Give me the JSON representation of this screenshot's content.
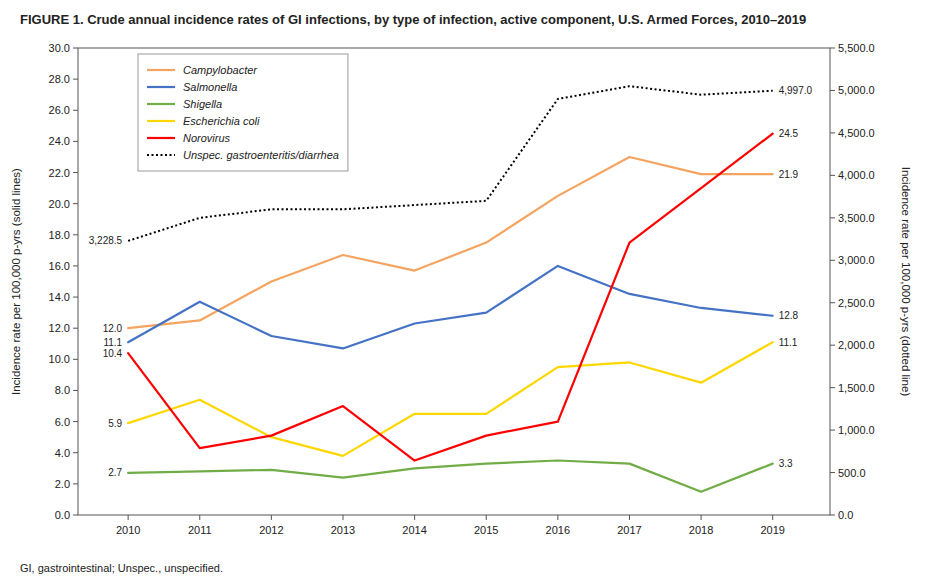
{
  "chart_data": {
    "type": "line",
    "title": "FIGURE 1. Crude annual incidence rates of GI infections, by type of infection, active component, U.S. Armed Forces, 2010–2019",
    "y_label": "Incidence rate per 100,000 p-yrs (solid lines)",
    "y2_label": "Incidence rate per 100,000 p-yrs (dotted line)",
    "footnote": "GI, gastrointestinal; Unspec., unspecified.",
    "x": [
      2010,
      2011,
      2012,
      2013,
      2014,
      2015,
      2016,
      2017,
      2018,
      2019
    ],
    "xlim": [
      2009.3,
      2019.8
    ],
    "xticks": [
      2010,
      2011,
      2012,
      2013,
      2014,
      2015,
      2016,
      2017,
      2018,
      2019
    ],
    "ylim": [
      0,
      30.0
    ],
    "yticks": [
      {
        "value": 0.0,
        "label": "0.0"
      },
      {
        "value": 2.0,
        "label": "2.0"
      },
      {
        "value": 4.0,
        "label": "4.0"
      },
      {
        "value": 6.0,
        "label": "6.0"
      },
      {
        "value": 8.0,
        "label": "8.0"
      },
      {
        "value": 10.0,
        "label": "10.0"
      },
      {
        "value": 12.0,
        "label": "12.0"
      },
      {
        "value": 14.0,
        "label": "14.0"
      },
      {
        "value": 16.0,
        "label": "16.0"
      },
      {
        "value": 18.0,
        "label": "18.0"
      },
      {
        "value": 20.0,
        "label": "20.0"
      },
      {
        "value": 22.0,
        "label": "22.0"
      },
      {
        "value": 24.0,
        "label": "24.0"
      },
      {
        "value": 26.0,
        "label": "26.0"
      },
      {
        "value": 28.0,
        "label": "28.0"
      },
      {
        "value": 30.0,
        "label": "30.0"
      }
    ],
    "y2lim": [
      0,
      5500.0
    ],
    "y2ticks": [
      {
        "value": 0.0,
        "label": "0.0"
      },
      {
        "value": 500.0,
        "label": "500.0"
      },
      {
        "value": 1000.0,
        "label": "1,000.0"
      },
      {
        "value": 1500.0,
        "label": "1,500.0"
      },
      {
        "value": 2000.0,
        "label": "2,000.0"
      },
      {
        "value": 2500.0,
        "label": "2,500.0"
      },
      {
        "value": 3000.0,
        "label": "3,000.0"
      },
      {
        "value": 3500.0,
        "label": "3,500.0"
      },
      {
        "value": 4000.0,
        "label": "4,000.0"
      },
      {
        "value": 4500.0,
        "label": "4,500.0"
      },
      {
        "value": 5000.0,
        "label": "5,000.0"
      },
      {
        "value": 5500.0,
        "label": "5,500.0"
      }
    ],
    "series": [
      {
        "name": "Campylobacter",
        "color": "#F4A460",
        "values": [
          12.0,
          12.5,
          15.0,
          16.7,
          15.7,
          17.5,
          20.5,
          23.0,
          21.9,
          21.9
        ]
      },
      {
        "name": "Salmonella",
        "color": "#4472C4",
        "values": [
          11.1,
          13.7,
          11.5,
          10.7,
          12.3,
          13.0,
          16.0,
          14.2,
          13.3,
          12.8
        ]
      },
      {
        "name": "Shigella",
        "color": "#70AD47",
        "values": [
          2.7,
          2.8,
          2.9,
          2.4,
          3.0,
          3.3,
          3.5,
          3.3,
          1.5,
          3.3
        ]
      },
      {
        "name": "Escherichia coli",
        "color": "#FFD700",
        "values": [
          5.9,
          7.4,
          5.0,
          3.8,
          6.5,
          6.5,
          9.5,
          9.8,
          8.5,
          11.1
        ]
      },
      {
        "name": "Norovirus",
        "color": "#FF0000",
        "values": [
          10.4,
          4.3,
          5.1,
          7.0,
          3.5,
          5.1,
          6.0,
          17.5,
          21.0,
          24.5
        ]
      },
      {
        "name": "Unspec. gastroenteritis/diarrhea",
        "color": "#000000",
        "line_style": "dotted",
        "axis": "y2",
        "values": [
          3228.5,
          3500.0,
          3600.0,
          3600.0,
          3650.0,
          3700.0,
          4900.0,
          5050.0,
          4950.0,
          4997.0
        ]
      }
    ],
    "annotations": [
      {
        "text": "12.0",
        "x": 2010,
        "y": 12.0
      },
      {
        "text": "11.1",
        "x": 2010,
        "y": 11.1
      },
      {
        "text": "10.4",
        "x": 2010,
        "y": 10.4
      },
      {
        "text": "5.9",
        "x": 2010,
        "y": 5.9
      },
      {
        "text": "2.7",
        "x": 2010,
        "y": 2.7
      },
      {
        "text": "3,228.5",
        "x": 2010,
        "y": 3228.5,
        "axis": "y2"
      },
      {
        "text": "24.5",
        "x": 2019,
        "y": 24.5
      },
      {
        "text": "21.9",
        "x": 2019,
        "y": 21.9
      },
      {
        "text": "12.8",
        "x": 2019,
        "y": 12.8
      },
      {
        "text": "11.1",
        "x": 2019,
        "y": 11.1
      },
      {
        "text": "3.3",
        "x": 2019,
        "y": 3.3
      },
      {
        "text": "4,997.0",
        "x": 2019,
        "y": 4997.0,
        "axis": "y2"
      }
    ],
    "legend": "upper left",
    "grid": false
  }
}
